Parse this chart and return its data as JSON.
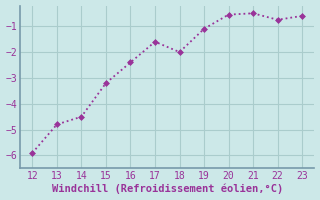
{
  "x": [
    12,
    13,
    14,
    15,
    16,
    17,
    18,
    19,
    20,
    21,
    22,
    23
  ],
  "y": [
    -5.9,
    -4.8,
    -4.5,
    -3.2,
    -2.4,
    -1.6,
    -2.0,
    -1.1,
    -0.55,
    -0.5,
    -0.75,
    -0.6
  ],
  "line_color": "#993399",
  "marker_color": "#993399",
  "bg_color": "#cce8e8",
  "grid_color": "#aacccc",
  "spine_color": "#7799aa",
  "xlabel": "Windchill (Refroidissement éolien,°C)",
  "xlabel_color": "#993399",
  "tick_color": "#993399",
  "ylim": [
    -6.5,
    -0.2
  ],
  "xlim": [
    11.5,
    23.5
  ],
  "yticks": [
    -6,
    -5,
    -4,
    -3,
    -2,
    -1
  ],
  "xticks": [
    12,
    13,
    14,
    15,
    16,
    17,
    18,
    19,
    20,
    21,
    22,
    23
  ],
  "font_family": "monospace",
  "tick_fontsize": 7,
  "xlabel_fontsize": 7.5
}
